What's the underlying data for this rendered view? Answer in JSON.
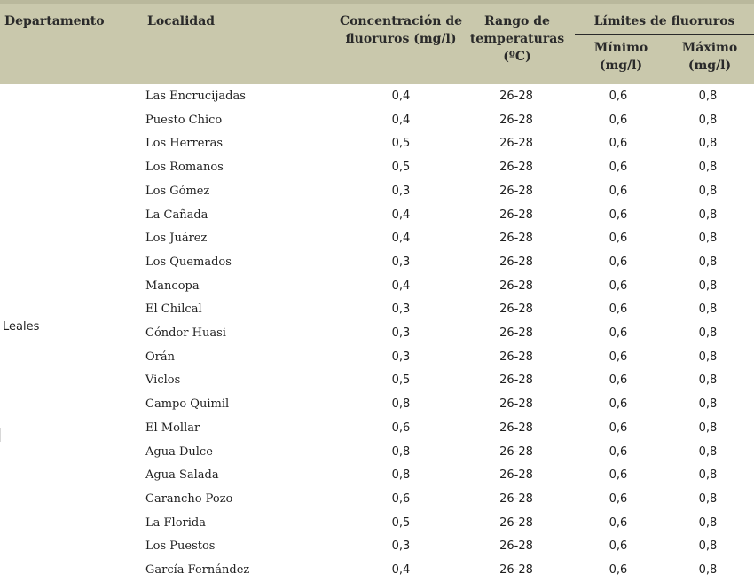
{
  "table": {
    "headers": {
      "departamento": "Departamento",
      "localidad": "Localidad",
      "concentracion": "Concentración de fluoruros (mg/l)",
      "rango": "Rango de temperaturas (ºC)",
      "limites": "Límites de fluoruros",
      "minimo": "Mínimo (mg/l)",
      "maximo": "Máximo (mg/l)"
    },
    "department": "Leales",
    "rows": [
      {
        "localidad": "Las Encrucijadas",
        "concentracion": "0,4",
        "rango": "26-28",
        "minimo": "0,6",
        "maximo": "0,8"
      },
      {
        "localidad": "Puesto Chico",
        "concentracion": "0,4",
        "rango": "26-28",
        "minimo": "0,6",
        "maximo": "0,8"
      },
      {
        "localidad": "Los Herreras",
        "concentracion": "0,5",
        "rango": "26-28",
        "minimo": "0,6",
        "maximo": "0,8"
      },
      {
        "localidad": "Los Romanos",
        "concentracion": "0,5",
        "rango": "26-28",
        "minimo": "0,6",
        "maximo": "0,8"
      },
      {
        "localidad": "Los Gómez",
        "concentracion": "0,3",
        "rango": "26-28",
        "minimo": "0,6",
        "maximo": "0,8"
      },
      {
        "localidad": "La Cañada",
        "concentracion": "0,4",
        "rango": "26-28",
        "minimo": "0,6",
        "maximo": "0,8"
      },
      {
        "localidad": "Los Juárez",
        "concentracion": "0,4",
        "rango": "26-28",
        "minimo": "0,6",
        "maximo": "0,8"
      },
      {
        "localidad": "Los Quemados",
        "concentracion": "0,3",
        "rango": "26-28",
        "minimo": "0,6",
        "maximo": "0,8"
      },
      {
        "localidad": "Mancopa",
        "concentracion": "0,4",
        "rango": "26-28",
        "minimo": "0,6",
        "maximo": "0,8"
      },
      {
        "localidad": "El Chilcal",
        "concentracion": "0,3",
        "rango": "26-28",
        "minimo": "0,6",
        "maximo": "0,8"
      },
      {
        "localidad": "Cóndor Huasi",
        "concentracion": "0,3",
        "rango": "26-28",
        "minimo": "0,6",
        "maximo": "0,8"
      },
      {
        "localidad": "Orán",
        "concentracion": "0,3",
        "rango": "26-28",
        "minimo": "0,6",
        "maximo": "0,8"
      },
      {
        "localidad": "Viclos",
        "concentracion": "0,5",
        "rango": "26-28",
        "minimo": "0,6",
        "maximo": "0,8"
      },
      {
        "localidad": "Campo Quimil",
        "concentracion": "0,8",
        "rango": "26-28",
        "minimo": "0,6",
        "maximo": "0,8"
      },
      {
        "localidad": "El Mollar",
        "concentracion": "0,6",
        "rango": "26-28",
        "minimo": "0,6",
        "maximo": "0,8"
      },
      {
        "localidad": "Agua Dulce",
        "concentracion": "0,8",
        "rango": "26-28",
        "minimo": "0,6",
        "maximo": "0,8"
      },
      {
        "localidad": "Agua Salada",
        "concentracion": "0,8",
        "rango": "26-28",
        "minimo": "0,6",
        "maximo": "0,8"
      },
      {
        "localidad": "Carancho Pozo",
        "concentracion": "0,6",
        "rango": "26-28",
        "minimo": "0,6",
        "maximo": "0,8"
      },
      {
        "localidad": "La Florida",
        "concentracion": "0,5",
        "rango": "26-28",
        "minimo": "0,6",
        "maximo": "0,8"
      },
      {
        "localidad": "Los Puestos",
        "concentracion": "0,3",
        "rango": "26-28",
        "minimo": "0,6",
        "maximo": "0,8"
      },
      {
        "localidad": "García Fernández",
        "concentracion": "0,4",
        "rango": "26-28",
        "minimo": "0,6",
        "maximo": "0,8"
      }
    ]
  }
}
